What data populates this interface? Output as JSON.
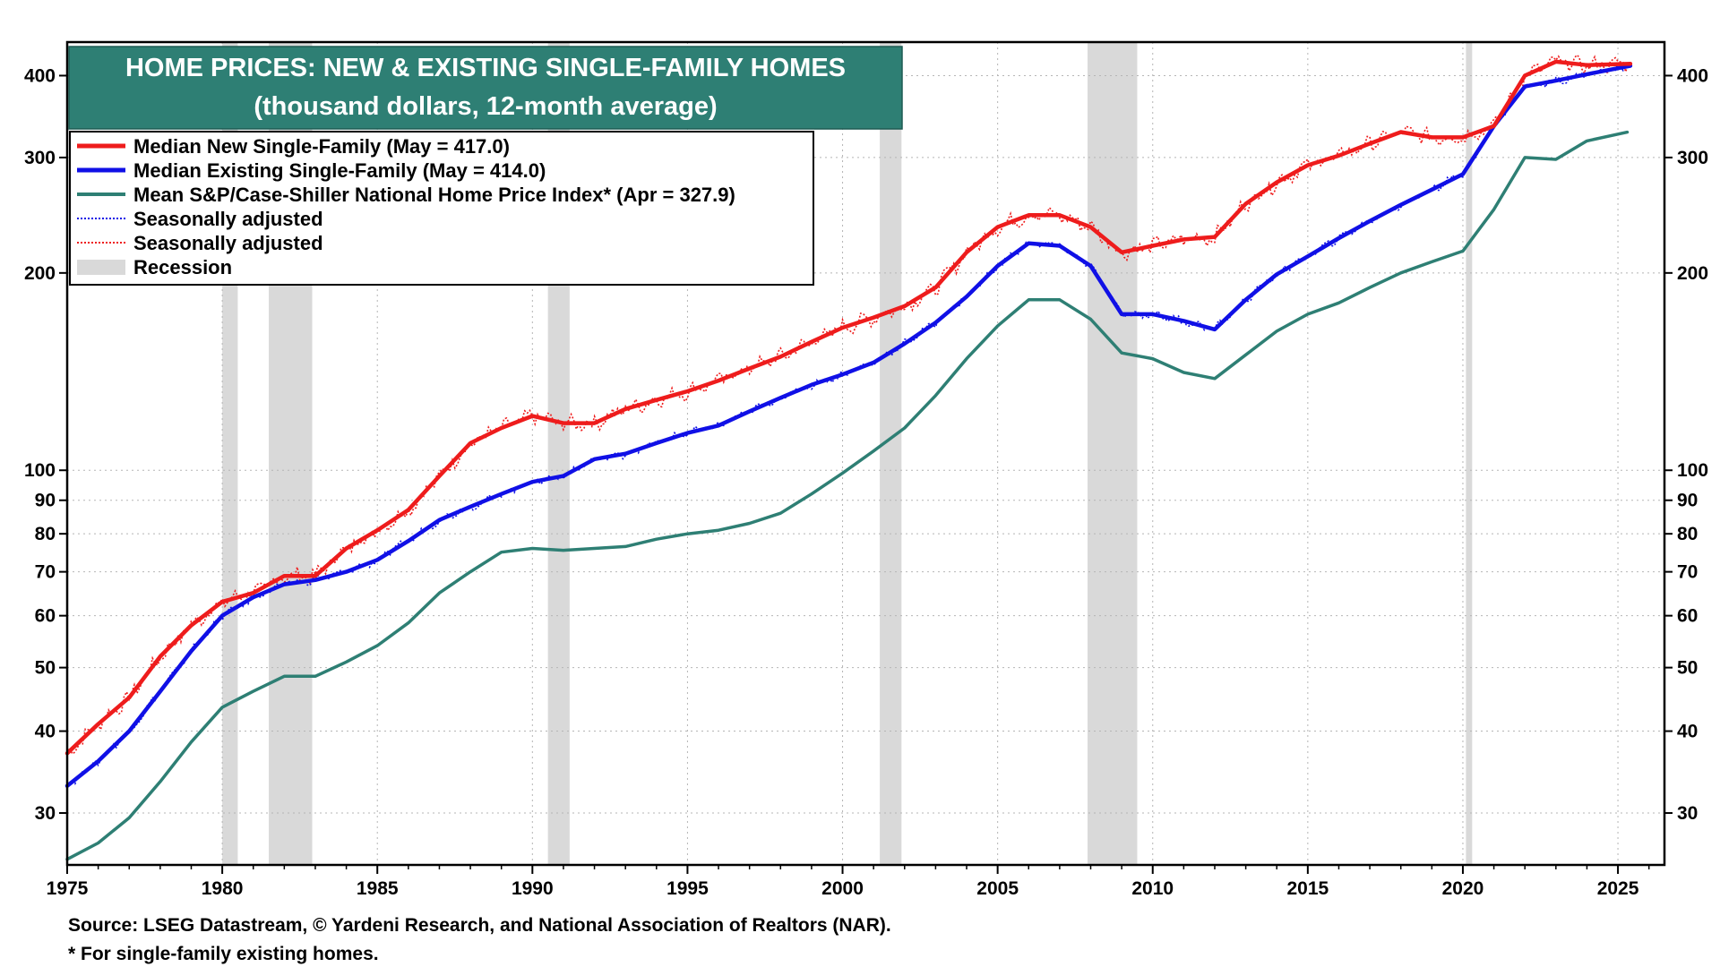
{
  "chart_data": {
    "type": "line",
    "title": "HOME PRICES: NEW & EXISTING SINGLE-FAMILY HOMES",
    "subtitle": "(thousand dollars, 12-month average)",
    "yscale": "log",
    "ylim": [
      25,
      450
    ],
    "xlim": [
      1975,
      2026.5
    ],
    "y_ticks": [
      30,
      40,
      50,
      60,
      70,
      80,
      90,
      100,
      200,
      300,
      400
    ],
    "y_tick_labels": [
      "30",
      "40",
      "50",
      "60",
      "70",
      "80",
      "90",
      "100",
      "200",
      "300",
      "400"
    ],
    "x_ticks": [
      1975,
      1980,
      1985,
      1990,
      1995,
      2000,
      2005,
      2010,
      2015,
      2020,
      2025
    ],
    "x_tick_labels": [
      "1975",
      "1980",
      "1985",
      "1990",
      "1995",
      "2000",
      "2005",
      "2010",
      "2015",
      "2020",
      "2025"
    ],
    "grid": true,
    "legend_position": "top-left",
    "legend": [
      {
        "label": "Median New Single-Family (May = 417.0)",
        "color": "#ee1c1c",
        "style": "solid"
      },
      {
        "label": "Median Existing Single-Family (May = 414.0)",
        "color": "#1010e6",
        "style": "solid"
      },
      {
        "label": "Mean S&P/Case-Shiller National Home Price Index* (Apr = 327.9)",
        "color": "#2e7f74",
        "style": "solid"
      },
      {
        "label": "Seasonally adjusted",
        "color": "#1010e6",
        "style": "dotted"
      },
      {
        "label": "Seasonally adjusted",
        "color": "#ee1c1c",
        "style": "dotted"
      },
      {
        "label": "Recession",
        "color": "#d9d9d9",
        "style": "box"
      }
    ],
    "recessions": [
      [
        1980.0,
        1980.5
      ],
      [
        1981.5,
        1982.9
      ],
      [
        1990.5,
        1991.2
      ],
      [
        2001.2,
        2001.9
      ],
      [
        2007.9,
        2009.5
      ],
      [
        2020.1,
        2020.3
      ]
    ],
    "series": [
      {
        "name": "Median New Single-Family",
        "color": "#ee1c1c",
        "x": [
          1975,
          1976,
          1977,
          1978,
          1979,
          1980,
          1981,
          1982,
          1983,
          1984,
          1985,
          1986,
          1987,
          1988,
          1989,
          1990,
          1991,
          1992,
          1993,
          1994,
          1995,
          1996,
          1997,
          1998,
          1999,
          2000,
          2001,
          2002,
          2003,
          2004,
          2005,
          2006,
          2007,
          2008,
          2009,
          2010,
          2011,
          2012,
          2013,
          2014,
          2015,
          2016,
          2017,
          2018,
          2019,
          2020,
          2021,
          2022,
          2023,
          2024,
          2025.4
        ],
        "values": [
          37,
          41,
          45,
          52,
          58,
          63,
          65,
          69,
          69,
          76,
          81,
          87,
          98,
          110,
          116,
          121,
          118,
          118,
          124,
          128,
          132,
          137,
          143,
          149,
          157,
          165,
          171,
          178,
          190,
          215,
          235,
          245,
          245,
          235,
          215,
          220,
          225,
          227,
          255,
          275,
          292,
          302,
          315,
          328,
          322,
          322,
          335,
          400,
          420,
          415,
          417
        ]
      },
      {
        "name": "Median Existing Single-Family",
        "color": "#1010e6",
        "x": [
          1975,
          1976,
          1977,
          1978,
          1979,
          1980,
          1981,
          1982,
          1983,
          1984,
          1985,
          1986,
          1987,
          1988,
          1989,
          1990,
          1991,
          1992,
          1993,
          1994,
          1995,
          1996,
          1997,
          1998,
          1999,
          2000,
          2001,
          2002,
          2003,
          2004,
          2005,
          2006,
          2007,
          2008,
          2009,
          2010,
          2011,
          2012,
          2013,
          2014,
          2015,
          2016,
          2017,
          2018,
          2019,
          2020,
          2021,
          2022,
          2023,
          2024,
          2025.4
        ],
        "values": [
          33,
          36,
          40,
          46,
          53,
          60,
          64,
          67,
          68,
          70,
          73,
          78,
          84,
          88,
          92,
          96,
          98,
          104,
          106,
          110,
          114,
          117,
          123,
          129,
          135,
          140,
          146,
          156,
          168,
          184,
          205,
          222,
          220,
          205,
          173,
          173,
          169,
          164,
          182,
          199,
          212,
          226,
          240,
          254,
          268,
          283,
          335,
          385,
          393,
          402,
          414
        ]
      },
      {
        "name": "Mean S&P/Case-Shiller National Home Price Index*",
        "color": "#2e7f74",
        "x": [
          1975,
          1976,
          1977,
          1978,
          1979,
          1980,
          1981,
          1982,
          1983,
          1984,
          1985,
          1986,
          1987,
          1988,
          1989,
          1990,
          1991,
          1992,
          1993,
          1994,
          1995,
          1996,
          1997,
          1998,
          1999,
          2000,
          2001,
          2002,
          2003,
          2004,
          2005,
          2006,
          2007,
          2008,
          2009,
          2010,
          2011,
          2012,
          2013,
          2014,
          2015,
          2016,
          2017,
          2018,
          2019,
          2020,
          2021,
          2022,
          2023,
          2024,
          2025.3
        ],
        "values": [
          25.5,
          27,
          29.5,
          33.5,
          38.5,
          43.5,
          46,
          48.5,
          48.5,
          51,
          54,
          58.5,
          65,
          70,
          75,
          76,
          75.5,
          76,
          76.5,
          78.5,
          80,
          81,
          83,
          86,
          92,
          99,
          107,
          116,
          130,
          148,
          166,
          182,
          182,
          170,
          151,
          148,
          141,
          138,
          150,
          163,
          173,
          180,
          190,
          200,
          208,
          216,
          250,
          300,
          298,
          318,
          327.9
        ]
      }
    ],
    "source": "Source: LSEG Datastream, © Yardeni Research, and National Association of Realtors (NAR).",
    "footnote": "* For single-family existing homes."
  }
}
